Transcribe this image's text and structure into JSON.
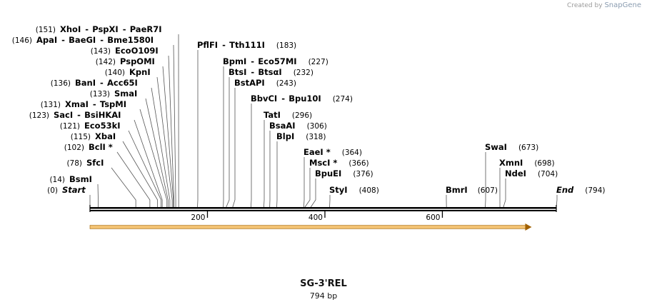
{
  "credit": {
    "prefix": "Created by",
    "brand": "SnapGene"
  },
  "map": {
    "name": "SG-3'REL",
    "length_label": "794 bp",
    "length_bp": 794,
    "ticks": [
      {
        "bp": 200,
        "label": "200"
      },
      {
        "bp": 400,
        "label": "400"
      },
      {
        "bp": 600,
        "label": "600"
      }
    ],
    "feature": {
      "start_bp": 0,
      "end_bp": 752,
      "color": "#f0c080",
      "edge_color": "#a06000"
    }
  },
  "sites": [
    {
      "id": "xhoi",
      "names": [
        "XhoI",
        "PspXI",
        "PaeR7I"
      ],
      "pos": 151,
      "pos_label": "(151)",
      "left": true
    },
    {
      "id": "apai",
      "names": [
        "ApaI",
        "BaeGI",
        "Bme1580I"
      ],
      "pos": 146,
      "pos_label": "(146)",
      "left": true
    },
    {
      "id": "ecoo",
      "names": [
        "EcoO109I"
      ],
      "pos": 143,
      "pos_label": "(143)",
      "left": true
    },
    {
      "id": "pspomi",
      "names": [
        "PspOMI"
      ],
      "pos": 142,
      "pos_label": "(142)",
      "left": true
    },
    {
      "id": "kpni",
      "names": [
        "KpnI"
      ],
      "pos": 140,
      "pos_label": "(140)",
      "left": true
    },
    {
      "id": "bani",
      "names": [
        "BanI",
        "Acc65I"
      ],
      "pos": 136,
      "pos_label": "(136)",
      "left": true
    },
    {
      "id": "smai",
      "names": [
        "SmaI"
      ],
      "pos": 133,
      "pos_label": "(133)",
      "left": true
    },
    {
      "id": "xmai",
      "names": [
        "XmaI",
        "TspMI"
      ],
      "pos": 131,
      "pos_label": "(131)",
      "left": true
    },
    {
      "id": "saci",
      "names": [
        "SacI",
        "BsiHKAI"
      ],
      "pos": 123,
      "pos_label": "(123)",
      "left": true
    },
    {
      "id": "eco53",
      "names": [
        "Eco53kI"
      ],
      "pos": 121,
      "pos_label": "(121)",
      "left": true
    },
    {
      "id": "xbai",
      "names": [
        "XbaI"
      ],
      "pos": 115,
      "pos_label": "(115)",
      "left": true
    },
    {
      "id": "bcli",
      "names": [
        "BclI *"
      ],
      "pos": 102,
      "pos_label": "(102)",
      "left": true
    },
    {
      "id": "sfci",
      "names": [
        "SfcI"
      ],
      "pos": 78,
      "pos_label": "(78)",
      "left": true
    },
    {
      "id": "bsmi",
      "names": [
        "BsmI"
      ],
      "pos": 14,
      "pos_label": "(14)",
      "left": true
    },
    {
      "id": "start",
      "names": [
        "Start"
      ],
      "pos": 0,
      "pos_label": "(0)",
      "left": true,
      "italic": true
    },
    {
      "id": "pflfi",
      "names": [
        "PflFI",
        "Tth111I"
      ],
      "pos": 183,
      "pos_label": "(183)"
    },
    {
      "id": "bpmi",
      "names": [
        "BpmI",
        "Eco57MI"
      ],
      "pos": 227,
      "pos_label": "(227)"
    },
    {
      "id": "btsi",
      "names": [
        "BtsI",
        "BtsαI"
      ],
      "pos": 232,
      "pos_label": "(232)"
    },
    {
      "id": "bstapi",
      "names": [
        "BstAPI"
      ],
      "pos": 243,
      "pos_label": "(243)"
    },
    {
      "id": "bbvci",
      "names": [
        "BbvCI",
        "Bpu10I"
      ],
      "pos": 274,
      "pos_label": "(274)"
    },
    {
      "id": "tati",
      "names": [
        "TatI"
      ],
      "pos": 296,
      "pos_label": "(296)"
    },
    {
      "id": "bsaai",
      "names": [
        "BsaAI"
      ],
      "pos": 306,
      "pos_label": "(306)"
    },
    {
      "id": "blpi",
      "names": [
        "BlpI"
      ],
      "pos": 318,
      "pos_label": "(318)"
    },
    {
      "id": "eaei",
      "names": [
        "EaeI *"
      ],
      "pos": 364,
      "pos_label": "(364)"
    },
    {
      "id": "msci",
      "names": [
        "MscI *"
      ],
      "pos": 366,
      "pos_label": "(366)"
    },
    {
      "id": "bpuei",
      "names": [
        "BpuEI"
      ],
      "pos": 376,
      "pos_label": "(376)"
    },
    {
      "id": "styi",
      "names": [
        "StyI"
      ],
      "pos": 408,
      "pos_label": "(408)"
    },
    {
      "id": "bmri",
      "names": [
        "BmrI"
      ],
      "pos": 607,
      "pos_label": "(607)",
      "pos_left": true
    },
    {
      "id": "swai",
      "names": [
        "SwaI"
      ],
      "pos": 673,
      "pos_label": "(673)"
    },
    {
      "id": "xmni",
      "names": [
        "XmnI"
      ],
      "pos": 698,
      "pos_label": "(698)"
    },
    {
      "id": "ndei",
      "names": [
        "NdeI"
      ],
      "pos": 704,
      "pos_label": "(704)"
    },
    {
      "id": "end",
      "names": [
        "End"
      ],
      "pos": 794,
      "pos_label": "(794)",
      "italic": true
    }
  ]
}
